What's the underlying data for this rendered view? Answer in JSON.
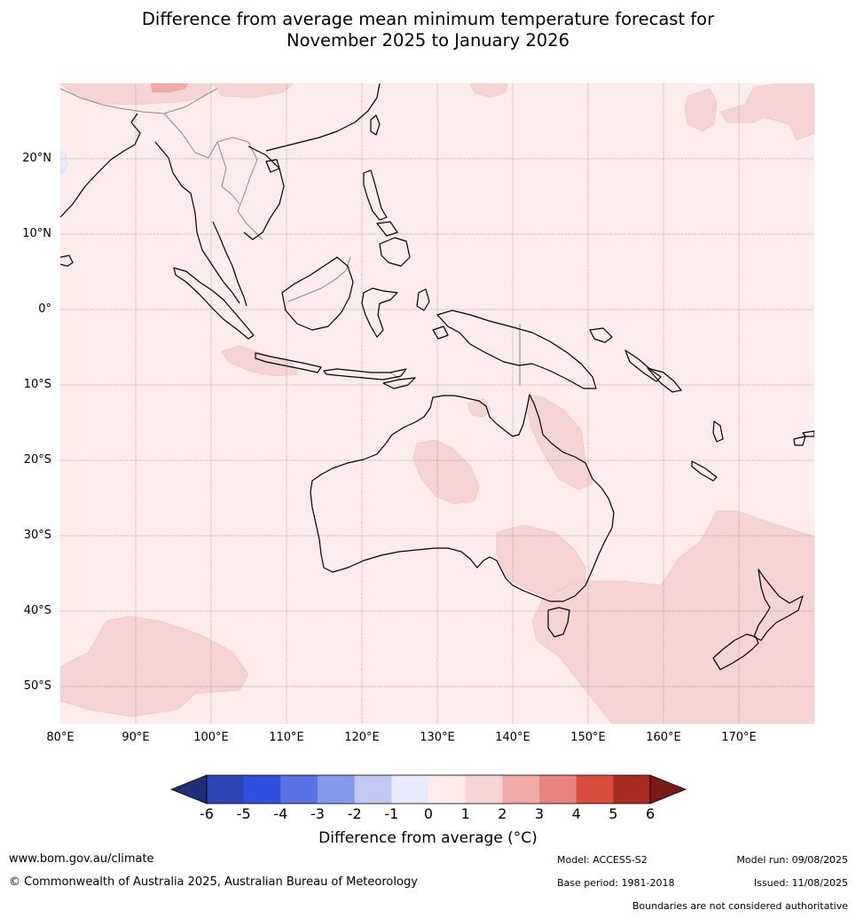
{
  "title": {
    "line1": "Difference from average mean minimum temperature forecast for",
    "line2": "November 2025 to January 2026"
  },
  "axes": {
    "latitudes": [
      "20°N",
      "10°N",
      "0°",
      "10°S",
      "20°S",
      "30°S",
      "40°S",
      "50°S"
    ],
    "longitudes": [
      "80°E",
      "90°E",
      "100°E",
      "110°E",
      "120°E",
      "130°E",
      "140°E",
      "150°E",
      "160°E",
      "170°E"
    ]
  },
  "colorbar": {
    "ticks": [
      "-6",
      "-5",
      "-4",
      "-3",
      "-2",
      "-1",
      "0",
      "1",
      "2",
      "3",
      "4",
      "5",
      "6"
    ],
    "colors": [
      "#1f2e7a",
      "#2b45b4",
      "#3050e0",
      "#5a74e6",
      "#8599ec",
      "#c1c9f3",
      "#e8ebfb",
      "#fdeceb",
      "#f6d4d3",
      "#edaaa7",
      "#e8847f",
      "#dc4b40",
      "#a82b21",
      "#7a1a16"
    ],
    "label": "Difference from average (°C)"
  },
  "footer": {
    "website": "www.bom.gov.au/climate",
    "copyright": "© Commonwealth of Australia 2025, Australian Bureau of Meteorology",
    "model": "Model: ACCESS-S2",
    "base_period": "Base period: 1981-2018",
    "model_run": "Model run: 09/08/2025",
    "issued": "Issued: 11/08/2025",
    "disclaimer": "Boundaries are not considered authoritative"
  }
}
